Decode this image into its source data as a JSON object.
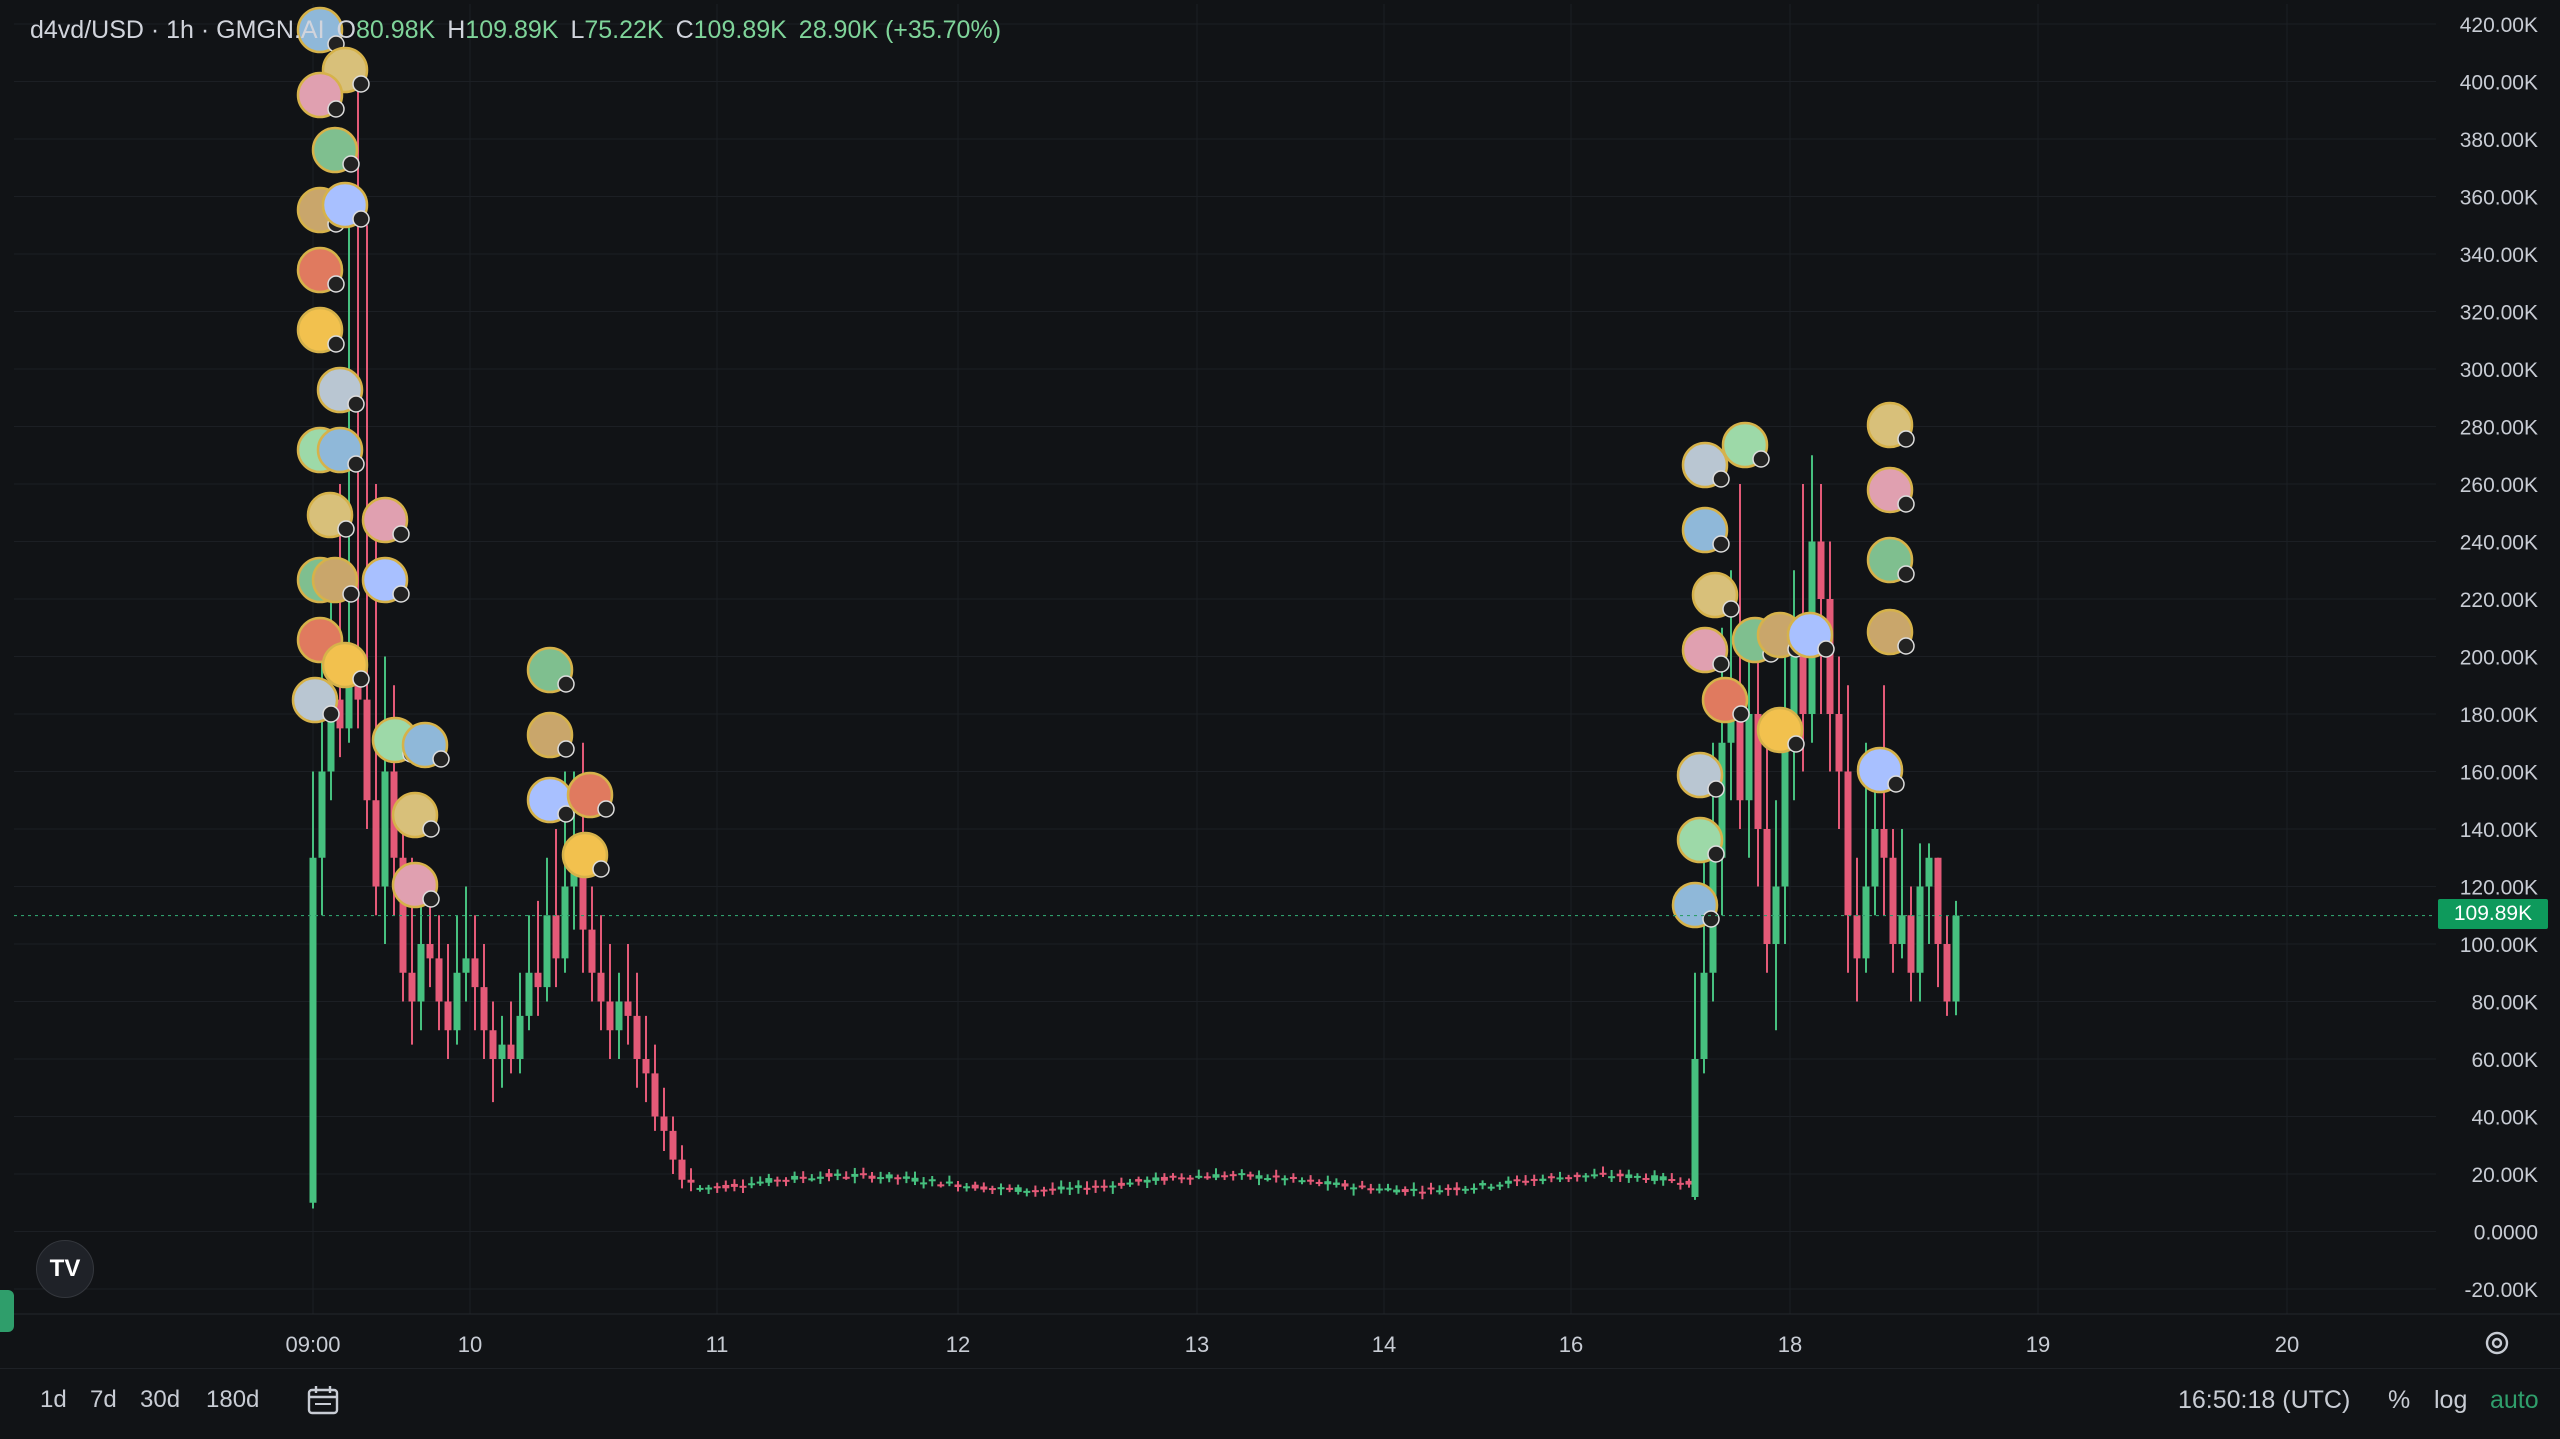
{
  "header": {
    "symbol": "d4vd/USD · 1h · GMGN.AI",
    "open_key": "O",
    "open": "80.98K",
    "high_key": "H",
    "high": "109.89K",
    "low_key": "L",
    "low": "75.22K",
    "close_key": "C",
    "close": "109.89K",
    "change": "28.90K (+35.70%)"
  },
  "price_tag": "109.89K",
  "timeframes": [
    "1d",
    "7d",
    "30d",
    "180d"
  ],
  "clock": "16:50:18 (UTC)",
  "options": {
    "percent": "%",
    "log": "log",
    "auto": "auto"
  },
  "logo": "TV",
  "icons": {
    "calendar": "calendar-range-icon",
    "settings": "gear-icon",
    "logo": "tradingview-logo-icon"
  },
  "colors": {
    "up": "#46c07f",
    "down": "#e45a78",
    "bg": "#111316",
    "grid": "#1c1f24",
    "accent": "#0e9a5c"
  },
  "chart_data": {
    "type": "candlestick",
    "y_ticks": [
      "420.00K",
      "400.00K",
      "380.00K",
      "360.00K",
      "340.00K",
      "320.00K",
      "300.00K",
      "280.00K",
      "260.00K",
      "240.00K",
      "220.00K",
      "200.00K",
      "180.00K",
      "160.00K",
      "140.00K",
      "120.00K",
      "100.00K",
      "80.00K",
      "60.00K",
      "40.00K",
      "20.00K",
      "0.0000",
      "-20.00K"
    ],
    "y_range": [
      -20000,
      420000
    ],
    "x_ticks": [
      {
        "label": "09:00",
        "t": 0
      },
      {
        "label": "10",
        "t": 15
      },
      {
        "label": "11",
        "t": 40
      },
      {
        "label": "12",
        "t": 64
      },
      {
        "label": "13",
        "t": 88
      },
      {
        "label": "14",
        "t": 107
      },
      {
        "label": "16",
        "t": 126
      },
      {
        "label": "18",
        "t": 148
      },
      {
        "label": "19",
        "t": 173
      },
      {
        "label": "20",
        "t": 207
      }
    ],
    "x_range": [
      -30,
      220
    ],
    "last_price": 109890
  }
}
